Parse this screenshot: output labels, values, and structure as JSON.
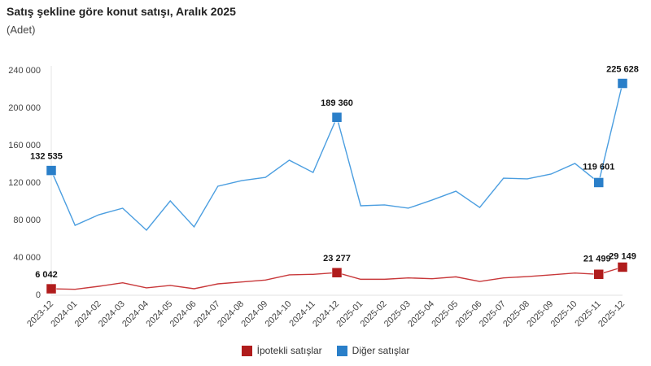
{
  "chart_data": {
    "type": "line",
    "title": "Satış şekline göre konut satışı, Aralık 2025",
    "subtitle": "(Adet)",
    "xlabel": "",
    "ylabel": "",
    "ylim": [
      0,
      240000
    ],
    "yticks": [
      0,
      40000,
      80000,
      120000,
      160000,
      200000,
      240000
    ],
    "ytick_labels": [
      "0",
      "40 000",
      "80 000",
      "120 000",
      "160 000",
      "200 000",
      "240 000"
    ],
    "grid": false,
    "legend_position": "bottom",
    "categories": [
      "2023-12",
      "2024-01",
      "2024-02",
      "2024-03",
      "2024-04",
      "2024-05",
      "2024-06",
      "2024-07",
      "2024-08",
      "2024-09",
      "2024-10",
      "2024-11",
      "2024-12",
      "2025-01",
      "2025-02",
      "2025-03",
      "2025-04",
      "2025-05",
      "2025-06",
      "2025-07",
      "2025-08",
      "2025-09",
      "2025-10",
      "2025-11",
      "2025-12"
    ],
    "series": [
      {
        "name": "İpotekli satışlar",
        "color": "#b01c1c",
        "values": [
          6042,
          5500,
          8700,
          12400,
          7000,
          9600,
          6100,
          11300,
          13300,
          15400,
          20900,
          21500,
          23277,
          16200,
          16200,
          17700,
          16800,
          18800,
          13900,
          17700,
          19100,
          20900,
          22900,
          21499,
          29149
        ],
        "labeled_points": {
          "0": "6 042",
          "12": "23 277",
          "23": "21 499",
          "24": "29 149"
        }
      },
      {
        "name": "Diğer satışlar",
        "color": "#2a7fc9",
        "values": [
          132535,
          73900,
          85200,
          92200,
          68700,
          100000,
          72200,
          115700,
          121700,
          125200,
          143500,
          130400,
          189360,
          94800,
          95700,
          92200,
          100900,
          110400,
          93000,
          124300,
          123500,
          128700,
          140000,
          119601,
          225628
        ],
        "labeled_points": {
          "0": "132 535",
          "12": "189 360",
          "23": "119 601",
          "24": "225 628"
        }
      }
    ]
  }
}
